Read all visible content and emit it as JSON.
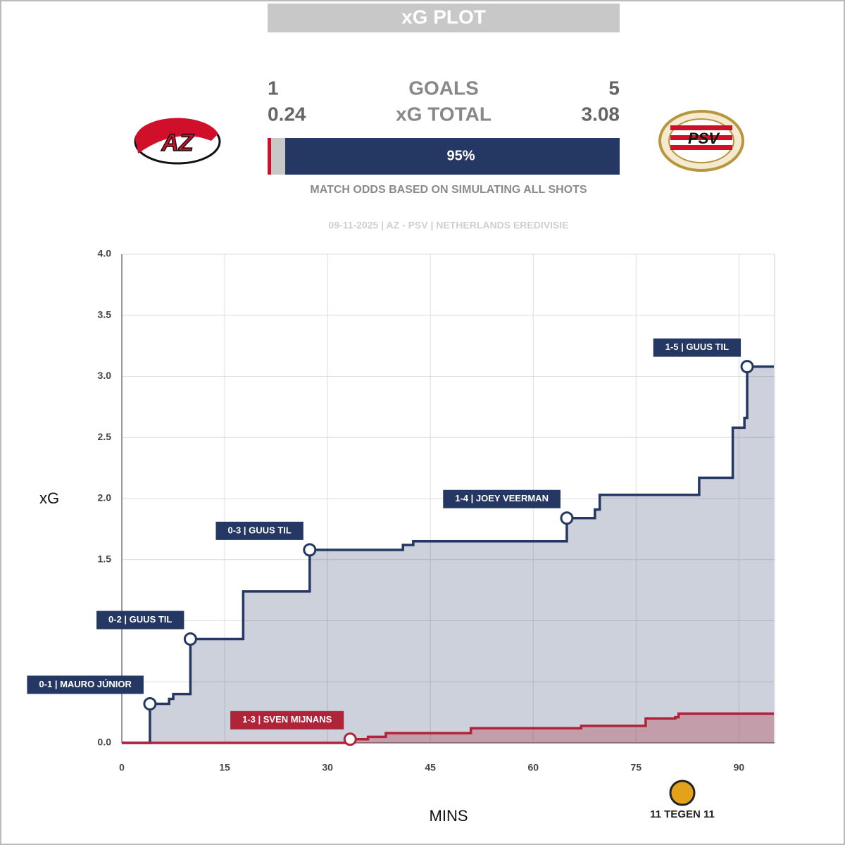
{
  "header": {
    "title": "xG PLOT",
    "home_goals": "1",
    "goals_label": "GOALS",
    "away_goals": "5",
    "home_xg": "0.24",
    "xg_label": "xG TOTAL",
    "away_xg": "3.08",
    "match_odds": {
      "home": 1,
      "draw": 4,
      "away": 95,
      "away_label": "95%",
      "caption": "MATCH ODDS BASED ON SIMULATING ALL SHOTS"
    },
    "subtitle": "09-11-2025 | AZ - PSV | NETHERLANDS EREDIVISIE",
    "home_logo": "AZ",
    "away_logo": "PSV",
    "brand": "11 TEGEN 11"
  },
  "chart_data": {
    "type": "line",
    "step": true,
    "fill": true,
    "xlabel": "MINS",
    "ylabel": "xG",
    "xlim": [
      0,
      95.2
    ],
    "xticks": [
      0,
      15,
      30,
      45,
      60,
      75,
      90
    ],
    "ylim": [
      0,
      4
    ],
    "yticks": [
      {
        "value": 0,
        "label": "0.0"
      },
      {
        "value": 0.5,
        "label": "0.5"
      },
      {
        "value": 1,
        "label": "1.0"
      },
      {
        "value": 1.5,
        "label": "1.5"
      },
      {
        "value": 2,
        "label": "2.0"
      },
      {
        "value": 2.5,
        "label": "2.5"
      },
      {
        "value": 3,
        "label": "3.0"
      },
      {
        "value": 3.5,
        "label": "3.5"
      },
      {
        "value": 4,
        "label": "4.0"
      }
    ],
    "grid": true,
    "series": [
      {
        "color": "#253763",
        "x": [
          0,
          4.1,
          6.9,
          7.5,
          10.0,
          17.7,
          27.4,
          41.0,
          42.5,
          64.9,
          69.0,
          69.7,
          84.2,
          89.1,
          90.8,
          91.2,
          95.1
        ],
        "values": [
          0,
          0.32,
          0.36,
          0.4,
          0.85,
          1.24,
          1.58,
          1.62,
          1.65,
          1.84,
          1.91,
          2.03,
          2.17,
          2.58,
          2.66,
          3.08,
          3.08
        ]
      },
      {
        "color": "#b0243a",
        "x": [
          0,
          33.3,
          35.9,
          38.5,
          50.9,
          67.0,
          76.4,
          80.7,
          81.2,
          95.1
        ],
        "values": [
          0,
          0.03,
          0.05,
          0.08,
          0.12,
          0.14,
          0.2,
          0.21,
          0.24,
          0.24
        ]
      }
    ],
    "annotations": [
      {
        "text": "0-1 | MAURO JÚNIOR",
        "x": 4.1,
        "y": 0.32,
        "color": "#253763"
      },
      {
        "text": "0-2 | GUUS TIL",
        "x": 10.0,
        "y": 0.85,
        "color": "#253763"
      },
      {
        "text": "0-3 | GUUS TIL",
        "x": 27.4,
        "y": 1.58,
        "color": "#253763"
      },
      {
        "text": "1-3 | SVEN MIJNANS",
        "x": 33.3,
        "y": 0.03,
        "color": "#b0243a"
      },
      {
        "text": "1-4 | JOEY VEERMAN",
        "x": 64.9,
        "y": 1.84,
        "color": "#253763"
      },
      {
        "text": "1-5 | GUUS TIL",
        "x": 91.2,
        "y": 3.08,
        "color": "#253763"
      }
    ]
  }
}
